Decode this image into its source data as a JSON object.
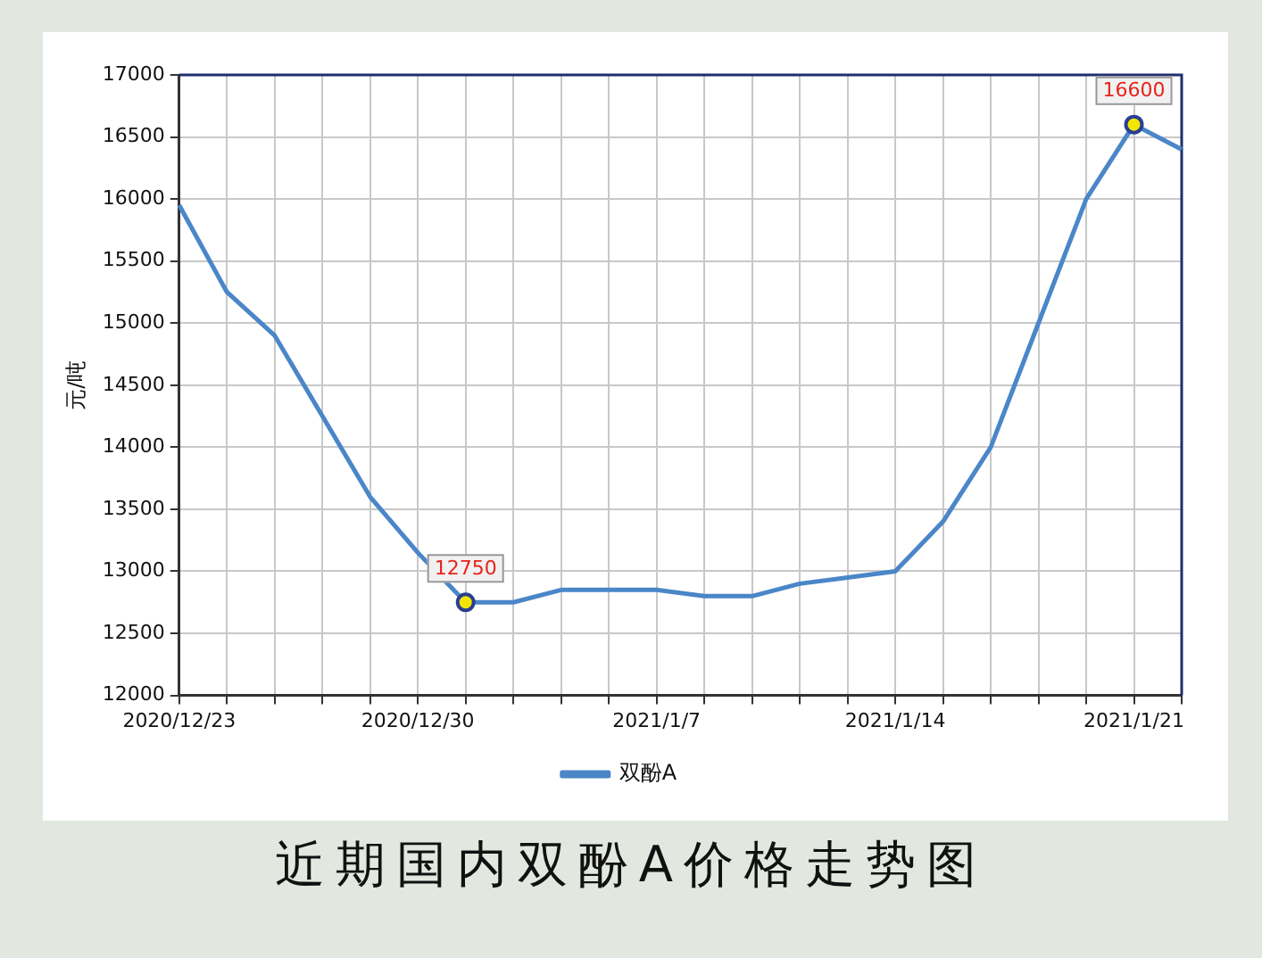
{
  "chart_data": {
    "type": "line",
    "title": "近期国内双酚A价格走势图",
    "ylabel": "元/吨",
    "categories": [
      "2020/12/23",
      null,
      null,
      null,
      null,
      "2020/12/30",
      null,
      null,
      null,
      null,
      "2021/1/7",
      null,
      null,
      null,
      null,
      "2021/1/14",
      null,
      null,
      null,
      null,
      "2021/1/21",
      null
    ],
    "series": [
      {
        "name": "双酚A",
        "color": "#4a86c8",
        "values": [
          15950,
          15250,
          14900,
          14250,
          13600,
          13150,
          12750,
          12750,
          12850,
          12850,
          12850,
          12800,
          12800,
          12900,
          12950,
          13000,
          13400,
          14000,
          15000,
          16000,
          16600,
          16400
        ]
      }
    ],
    "ylim": [
      12000,
      17000
    ],
    "yticks": [
      12000,
      12500,
      13000,
      13500,
      14000,
      14500,
      15000,
      15500,
      16000,
      16500,
      17000
    ],
    "grid": true,
    "legend": "bottom",
    "marker": "none",
    "line_style": "solid",
    "annotations": [
      {
        "text": "12750",
        "y": 12750
      },
      {
        "text": "16600",
        "y": 16600
      }
    ]
  }
}
